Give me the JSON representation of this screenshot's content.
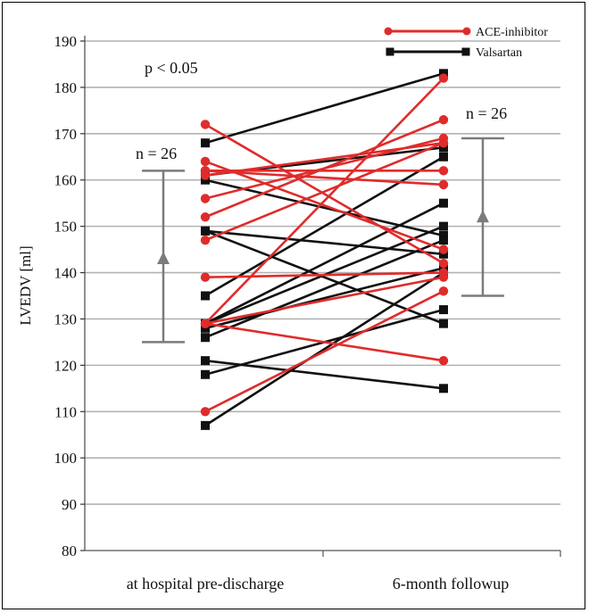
{
  "chart_data": {
    "type": "line",
    "ylabel": "LVEDV [ml]",
    "xlabel": "",
    "categories": [
      "at hospital pre-discharge",
      "6-month followup"
    ],
    "ylim": [
      80,
      190
    ],
    "yticks": [
      80,
      90,
      100,
      110,
      120,
      130,
      140,
      150,
      160,
      170,
      180,
      190
    ],
    "grid": true,
    "legend_position": "top-right",
    "annotations": {
      "p_value": "p < 0.05",
      "n_left": "n = 26",
      "n_right": "n = 26"
    },
    "summary_bars": [
      {
        "group": "at hospital pre-discharge",
        "mean": 143,
        "low": 125,
        "high": 162
      },
      {
        "group": "6-month followup",
        "mean": 152,
        "low": 135,
        "high": 169
      }
    ],
    "series": [
      {
        "name": "ACE-inhibitor",
        "color": "#e02b2b",
        "marker": "circle",
        "pairs": [
          [
            172,
            142
          ],
          [
            164,
            145
          ],
          [
            162,
            159
          ],
          [
            162,
            162
          ],
          [
            161,
            168
          ],
          [
            156,
            169
          ],
          [
            152,
            173
          ],
          [
            147,
            168
          ],
          [
            139,
            140
          ],
          [
            129,
            182
          ],
          [
            129,
            121
          ],
          [
            129,
            139
          ],
          [
            110,
            136
          ]
        ]
      },
      {
        "name": "Valsartan",
        "color": "#111111",
        "marker": "square",
        "pairs": [
          [
            168,
            183
          ],
          [
            161,
            167
          ],
          [
            160,
            148
          ],
          [
            149,
            129
          ],
          [
            149,
            144
          ],
          [
            135,
            165
          ],
          [
            129,
            155
          ],
          [
            129,
            150
          ],
          [
            128,
            141
          ],
          [
            126,
            147
          ],
          [
            121,
            115
          ],
          [
            118,
            132
          ],
          [
            107,
            140
          ]
        ]
      }
    ]
  }
}
